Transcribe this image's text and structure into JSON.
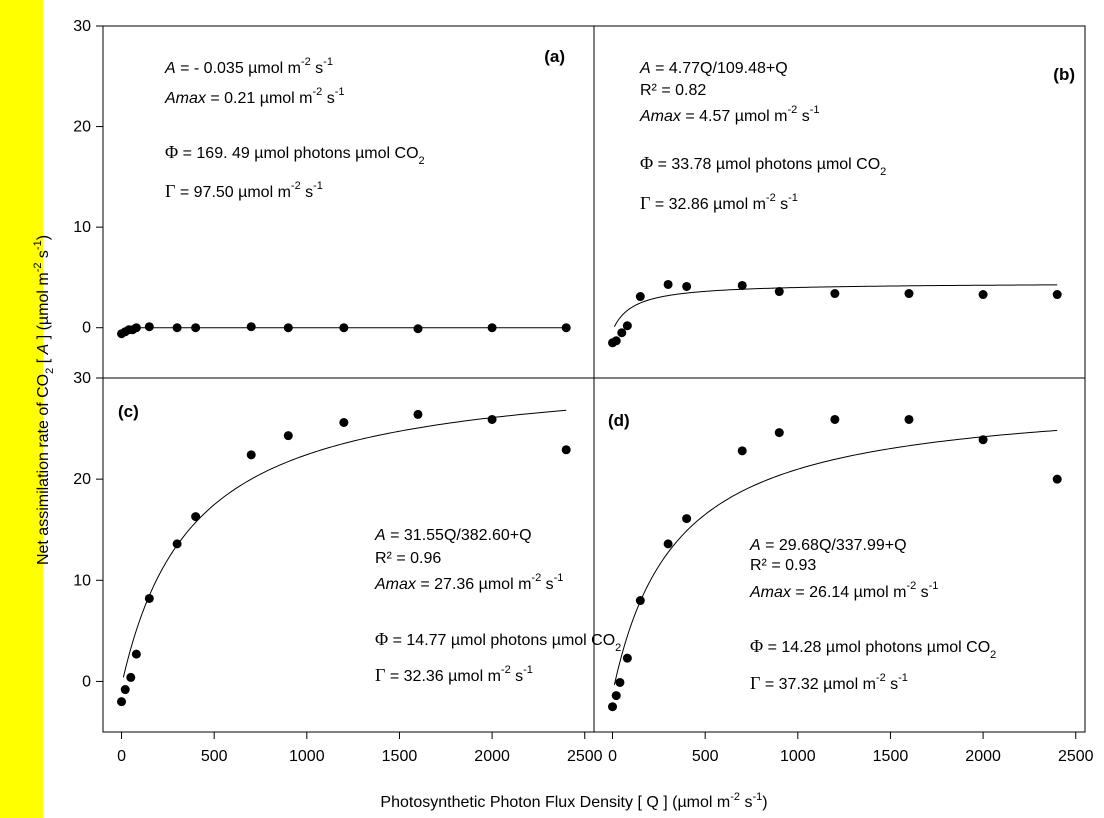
{
  "colors": {
    "sidebar": "#ffff00",
    "points": "#000000",
    "line": "#000000",
    "background": "#ffffff"
  },
  "xlabel": {
    "text": "Photosynthetic Photon Flux Density  [ Q ] (µmol m",
    "sup1": "-2",
    "mid": " s",
    "sup2": "-1",
    "end": ")"
  },
  "ylabel": {
    "pre": "Net assimilation rate of CO",
    "sub": "2",
    "mid": " [ ",
    "italic": "A",
    "mid2": " ] (µmol m",
    "sup1": "-2",
    "mid3": " s",
    "sup2": "-1",
    "end": ")"
  },
  "chart_data": [
    {
      "type": "scatter",
      "panel": "(a)",
      "xlim": [
        -100,
        2550
      ],
      "ylim": [
        -5,
        30
      ],
      "y_ticks": [
        0,
        10,
        20,
        30
      ],
      "x_ticks": [],
      "points": [
        [
          0,
          -0.6
        ],
        [
          20,
          -0.4
        ],
        [
          40,
          -0.2
        ],
        [
          60,
          -0.2
        ],
        [
          80,
          0.0
        ],
        [
          150,
          0.1
        ],
        [
          300,
          0.0
        ],
        [
          400,
          0.0
        ],
        [
          700,
          0.1
        ],
        [
          900,
          0.0
        ],
        [
          1200,
          0.0
        ],
        [
          1600,
          -0.1
        ],
        [
          2000,
          0.0
        ],
        [
          2400,
          0.0
        ]
      ],
      "fit": {
        "type": "flat",
        "value": 0.0,
        "x0": 20,
        "x1": 2400
      },
      "annotations": [
        {
          "parts": [
            {
              "t": "A",
              "i": true
            },
            {
              "t": " = - 0.035  µmol m"
            },
            {
              "t": "-2",
              "s": "sup"
            },
            {
              "t": " s"
            },
            {
              "t": "-1",
              "s": "sup"
            }
          ]
        },
        {
          "parts": [
            {
              "t": "Amax",
              "i": true
            },
            {
              "t": " =  0.21 µmol m"
            },
            {
              "t": "-2",
              "s": "sup"
            },
            {
              "t": " s"
            },
            {
              "t": "-1",
              "s": "sup"
            }
          ]
        },
        {
          "parts": [
            {
              "t": "Φ",
              "g": true
            },
            {
              "t": " =  169. 49 µmol photons µmol  CO"
            },
            {
              "t": "2",
              "s": "sub"
            }
          ]
        },
        {
          "parts": [
            {
              "t": "Γ",
              "g": true
            },
            {
              "t": " =   97.50 µmol m"
            },
            {
              "t": "-2",
              "s": "sup"
            },
            {
              "t": " s"
            },
            {
              "t": "-1",
              "s": "sup"
            }
          ]
        }
      ]
    },
    {
      "type": "scatter",
      "panel": "(b)",
      "xlim": [
        -100,
        2550
      ],
      "ylim": [
        -5,
        30
      ],
      "y_ticks": [],
      "x_ticks": [],
      "points": [
        [
          0,
          -1.5
        ],
        [
          20,
          -1.3
        ],
        [
          50,
          -0.5
        ],
        [
          80,
          0.2
        ],
        [
          150,
          3.1
        ],
        [
          300,
          4.3
        ],
        [
          400,
          4.1
        ],
        [
          700,
          4.2
        ],
        [
          900,
          3.6
        ],
        [
          1200,
          3.4
        ],
        [
          1600,
          3.4
        ],
        [
          2000,
          3.3
        ],
        [
          2400,
          3.3
        ]
      ],
      "fit": {
        "type": "mm",
        "a": 4.77,
        "k": 109.48,
        "c": -0.3,
        "x0": 10,
        "x1": 2400
      },
      "annotations": [
        {
          "parts": [
            {
              "t": "A",
              "i": true
            },
            {
              "t": " = 4.77Q/109.48+Q"
            }
          ]
        },
        {
          "parts": [
            {
              "t": "R² = 0.82"
            }
          ]
        },
        {
          "parts": [
            {
              "t": "Amax",
              "i": true
            },
            {
              "t": " = 4.57 µmol m"
            },
            {
              "t": "-2",
              "s": "sup"
            },
            {
              "t": " s"
            },
            {
              "t": "-1",
              "s": "sup"
            }
          ]
        },
        {
          "parts": [
            {
              "t": "Φ",
              "g": true
            },
            {
              "t": " =  33.78 µmol photons µmol  CO"
            },
            {
              "t": "2",
              "s": "sub"
            }
          ]
        },
        {
          "parts": [
            {
              "t": "Γ",
              "g": true
            },
            {
              "t": " =  32.86 µmol m"
            },
            {
              "t": "-2",
              "s": "sup"
            },
            {
              "t": " s"
            },
            {
              "t": "-1",
              "s": "sup"
            }
          ]
        }
      ]
    },
    {
      "type": "scatter",
      "panel": "(c)",
      "xlim": [
        -100,
        2550
      ],
      "ylim": [
        -5,
        30
      ],
      "y_ticks": [
        0,
        10,
        20,
        30
      ],
      "x_ticks": [
        0,
        500,
        1000,
        1500,
        2000,
        2500
      ],
      "points": [
        [
          0,
          -2.0
        ],
        [
          20,
          -0.8
        ],
        [
          50,
          0.4
        ],
        [
          80,
          2.7
        ],
        [
          150,
          8.2
        ],
        [
          300,
          13.6
        ],
        [
          400,
          16.3
        ],
        [
          700,
          22.4
        ],
        [
          900,
          24.3
        ],
        [
          1200,
          25.6
        ],
        [
          1600,
          26.4
        ],
        [
          2000,
          25.9
        ],
        [
          2400,
          22.9
        ]
      ],
      "fit": {
        "type": "mm",
        "a": 31.55,
        "k": 382.6,
        "c": -0.4,
        "x0": 10,
        "x1": 2400
      },
      "annotations": [
        {
          "parts": [
            {
              "t": "A",
              "i": true
            },
            {
              "t": " = 31.55Q/382.60+Q"
            }
          ]
        },
        {
          "parts": [
            {
              "t": "R² = 0.96"
            }
          ]
        },
        {
          "parts": [
            {
              "t": "Amax",
              "i": true
            },
            {
              "t": " = 27.36 µmol m"
            },
            {
              "t": "-2",
              "s": "sup"
            },
            {
              "t": " s"
            },
            {
              "t": "-1",
              "s": "sup"
            }
          ]
        },
        {
          "parts": [
            {
              "t": "Φ",
              "g": true
            },
            {
              "t": " = 14.77 µmol photons µmol  CO"
            },
            {
              "t": "2",
              "s": "sub"
            }
          ]
        },
        {
          "parts": [
            {
              "t": "Γ",
              "g": true
            },
            {
              "t": " =   32.36 µmol m"
            },
            {
              "t": "-2",
              "s": "sup"
            },
            {
              "t": " s"
            },
            {
              "t": "-1",
              "s": "sup"
            }
          ]
        }
      ]
    },
    {
      "type": "scatter",
      "panel": "(d)",
      "xlim": [
        -100,
        2550
      ],
      "ylim": [
        -5,
        30
      ],
      "y_ticks": [],
      "x_ticks": [
        0,
        500,
        1000,
        1500,
        2000,
        2500
      ],
      "points": [
        [
          0,
          -2.5
        ],
        [
          20,
          -1.4
        ],
        [
          40,
          -0.1
        ],
        [
          80,
          2.3
        ],
        [
          150,
          8.0
        ],
        [
          300,
          13.6
        ],
        [
          400,
          16.1
        ],
        [
          700,
          22.8
        ],
        [
          900,
          24.6
        ],
        [
          1200,
          25.9
        ],
        [
          1600,
          25.9
        ],
        [
          2000,
          23.9
        ],
        [
          2400,
          20.0
        ]
      ],
      "fit": {
        "type": "mm",
        "a": 29.68,
        "k": 337.99,
        "c": -1.2,
        "x0": 10,
        "x1": 2400
      },
      "annotations": [
        {
          "parts": [
            {
              "t": "A",
              "i": true
            },
            {
              "t": " = 29.68Q/337.99+Q"
            }
          ]
        },
        {
          "parts": [
            {
              "t": "R² = 0.93"
            }
          ]
        },
        {
          "parts": [
            {
              "t": "Amax",
              "i": true
            },
            {
              "t": " =  26.14 µmol m"
            },
            {
              "t": "-2",
              "s": "sup"
            },
            {
              "t": " s"
            },
            {
              "t": "-1",
              "s": "sup"
            }
          ]
        },
        {
          "parts": [
            {
              "t": "Φ",
              "g": true
            },
            {
              "t": " =  14.28 µmol photons µmol  CO"
            },
            {
              "t": "2",
              "s": "sub"
            }
          ]
        },
        {
          "parts": [
            {
              "t": "Γ",
              "g": true
            },
            {
              "t": " =   37.32 µmol m"
            },
            {
              "t": "-2",
              "s": "sup"
            },
            {
              "t": " s"
            },
            {
              "t": "-1",
              "s": "sup"
            }
          ]
        }
      ]
    }
  ]
}
